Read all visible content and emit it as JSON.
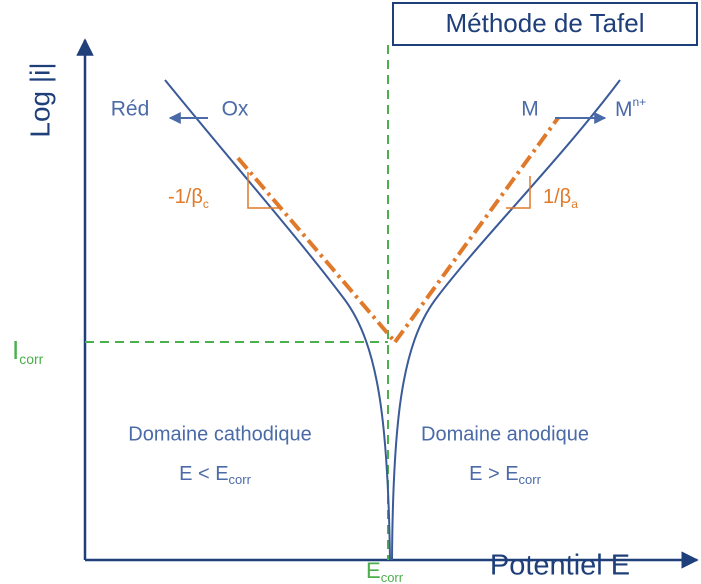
{
  "header": {
    "title": "Méthode de Tafel"
  },
  "axes": {
    "y_label": "Log |i|",
    "x_label": "Potentiel E"
  },
  "reactions": {
    "cathodic": {
      "left": "Réd",
      "right": "Ox"
    },
    "anodic": {
      "left": "M",
      "right": "M",
      "right_sup": "n+"
    }
  },
  "slopes": {
    "cathodic": {
      "main": "-1/β",
      "sub": "c"
    },
    "anodic": {
      "main": "1/β",
      "sub": "a"
    }
  },
  "markers": {
    "icorr": {
      "main": "I",
      "sub": "corr"
    },
    "ecorr": {
      "main": "E",
      "sub": "corr"
    }
  },
  "domains": {
    "cathodic": {
      "label": "Domaine cathodique",
      "condition": "E < E",
      "condition_sub": "corr"
    },
    "anodic": {
      "label": "Domaine anodique",
      "condition": "E > E",
      "condition_sub": "corr"
    }
  }
}
